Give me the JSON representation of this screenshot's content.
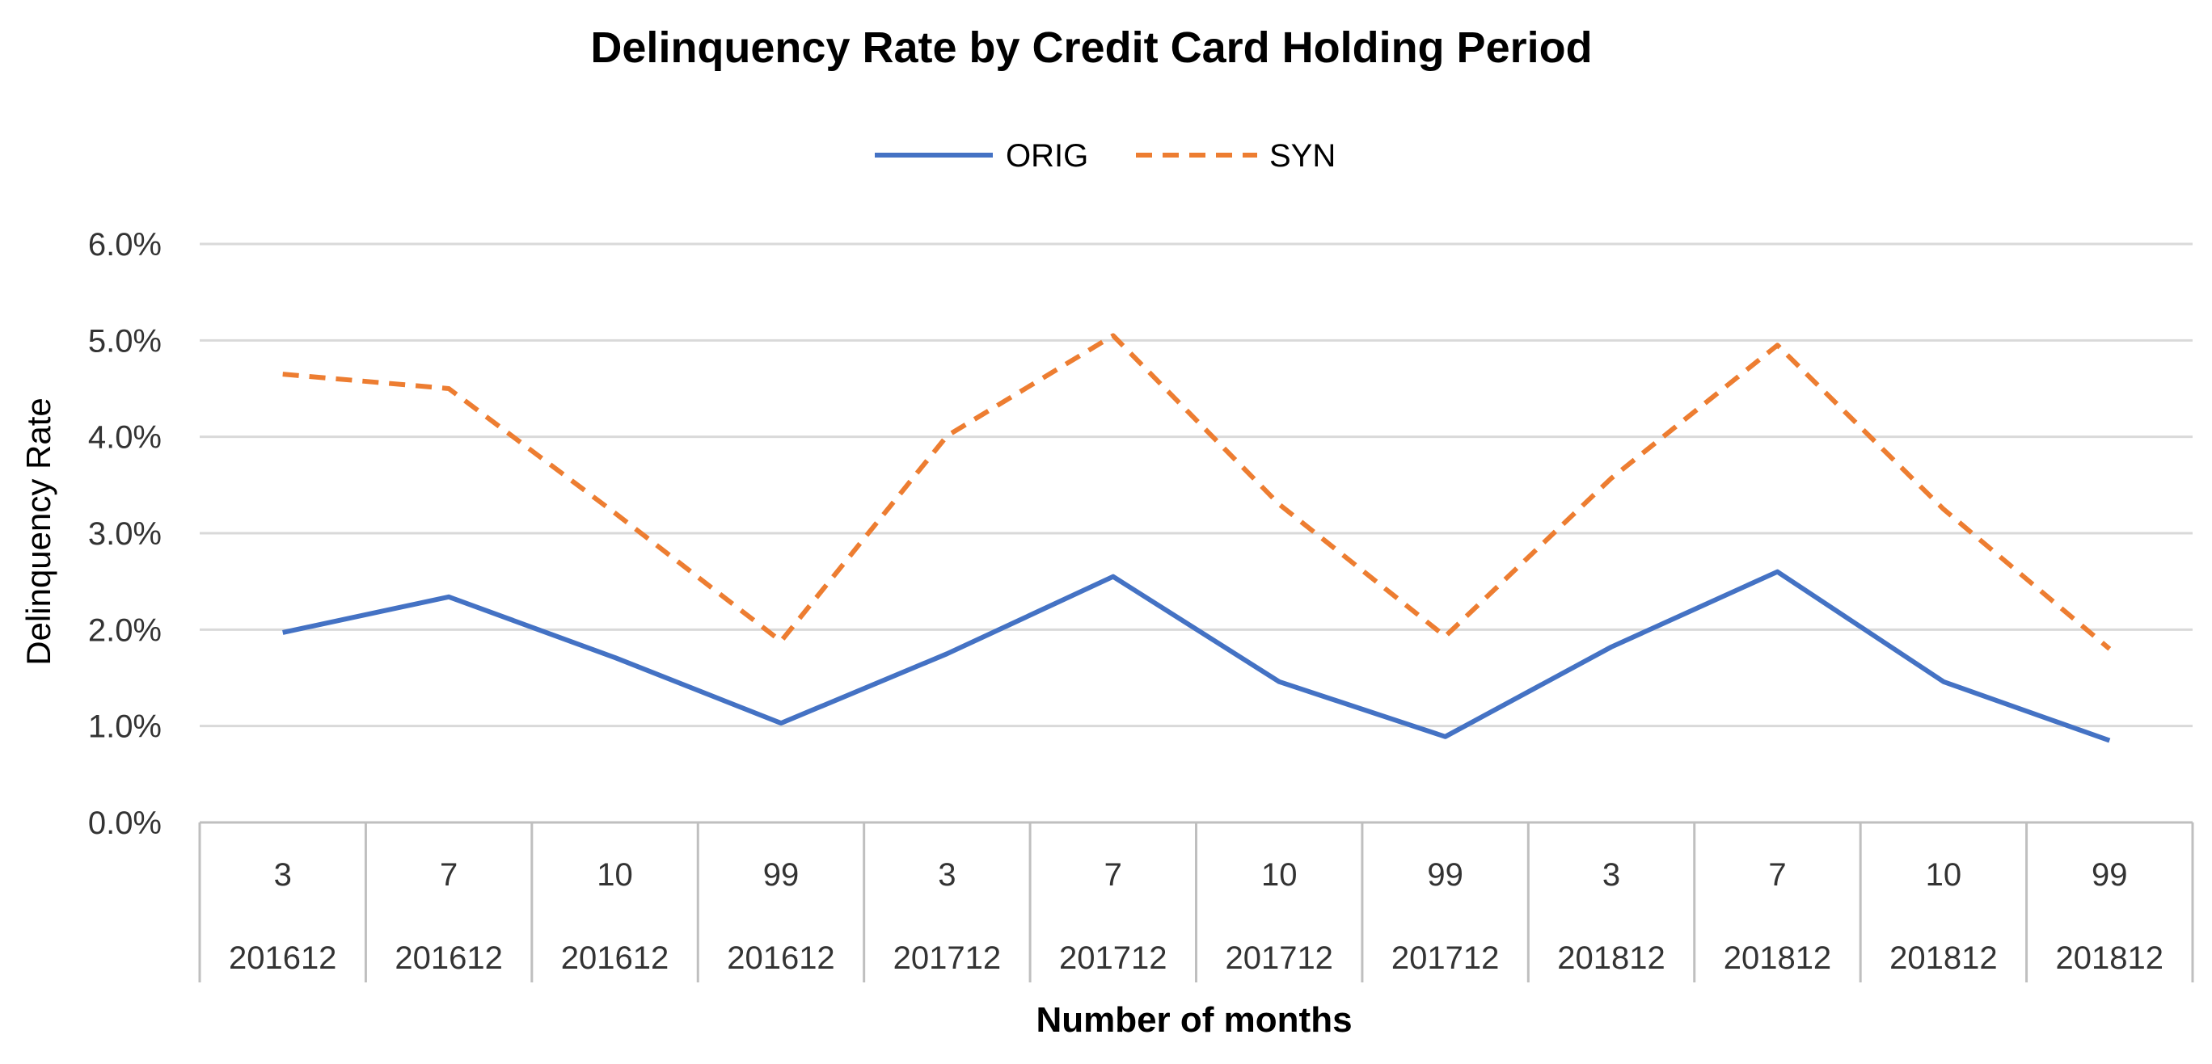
{
  "chart_data": {
    "type": "line",
    "title": "Delinquency Rate by Credit Card Holding Period",
    "xlabel": "Number of months",
    "ylabel": "Delinquency Rate",
    "ylim": [
      0,
      0.06
    ],
    "yticks": [
      "0.0%",
      "1.0%",
      "2.0%",
      "3.0%",
      "4.0%",
      "5.0%",
      "6.0%"
    ],
    "grid": true,
    "legend_position": "top-center",
    "categories": [
      {
        "month": "3",
        "period": "201612"
      },
      {
        "month": "7",
        "period": "201612"
      },
      {
        "month": "10",
        "period": "201612"
      },
      {
        "month": "99",
        "period": "201612"
      },
      {
        "month": "3",
        "period": "201712"
      },
      {
        "month": "7",
        "period": "201712"
      },
      {
        "month": "10",
        "period": "201712"
      },
      {
        "month": "99",
        "period": "201712"
      },
      {
        "month": "3",
        "period": "201812"
      },
      {
        "month": "7",
        "period": "201812"
      },
      {
        "month": "10",
        "period": "201812"
      },
      {
        "month": "99",
        "period": "201812"
      }
    ],
    "series": [
      {
        "name": "ORIG",
        "color": "#4472C4",
        "style": "solid",
        "values": [
          0.0197,
          0.0234,
          0.0171,
          0.0103,
          0.0175,
          0.0255,
          0.0146,
          0.0089,
          0.0182,
          0.026,
          0.0146,
          0.0085
        ]
      },
      {
        "name": "SYN",
        "color": "#ED7D31",
        "style": "dashed",
        "values": [
          0.0465,
          0.045,
          0.0321,
          0.0188,
          0.0401,
          0.0505,
          0.033,
          0.0193,
          0.0357,
          0.0495,
          0.0325,
          0.018
        ]
      }
    ]
  }
}
